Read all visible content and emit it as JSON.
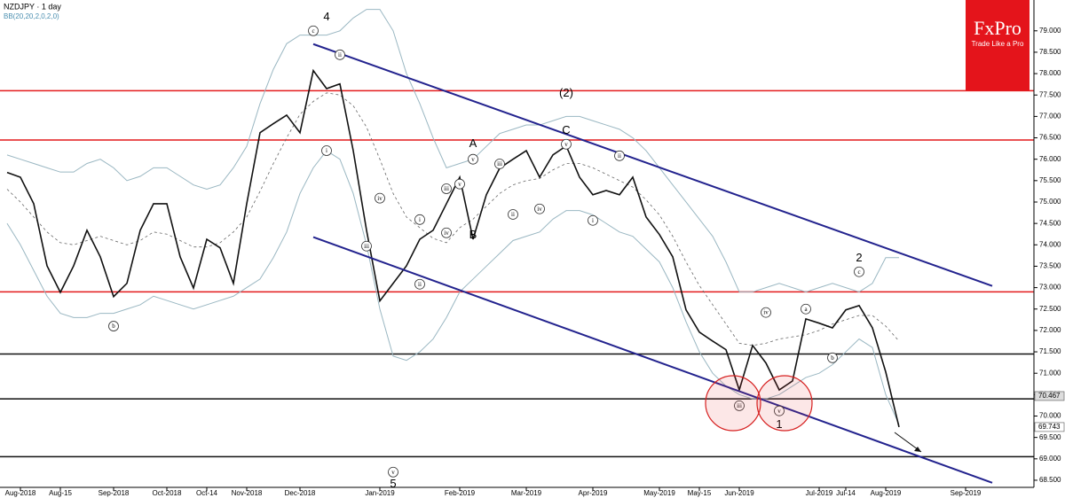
{
  "chart_data": {
    "type": "line",
    "title": "NZDJPY · 1 day",
    "subtitle": "BB(20,20,2,0,2,0)",
    "logo": {
      "brand": "FxPro",
      "tagline": "Trade Like a Pro"
    },
    "categories": [
      null,
      "Aug-2018",
      null,
      null,
      "Aug-15",
      null,
      null,
      null,
      "Sep-2018",
      null,
      null,
      null,
      "Oct-2018",
      null,
      null,
      "Oct-14",
      null,
      null,
      "Nov-2018",
      null,
      null,
      null,
      "Dec-2018",
      null,
      null,
      null,
      null,
      null,
      "Jan-2019",
      null,
      null,
      null,
      null,
      null,
      "Feb-2019",
      null,
      null,
      null,
      null,
      "Mar-2019",
      null,
      null,
      null,
      null,
      "Apr-2019",
      null,
      null,
      null,
      null,
      "May-2019",
      null,
      null,
      "May-15",
      null,
      null,
      "Jun-2019",
      null,
      null,
      null,
      null,
      null,
      "Jul-2019",
      null,
      "Jul-14",
      null,
      null,
      "Aug-2019",
      null,
      null,
      null,
      null,
      null,
      "Sep-2019",
      null,
      null,
      null,
      null,
      null
    ],
    "series": [
      {
        "color": "#111111",
        "width": 1.6,
        "values": [
          75.69,
          75.58,
          74.96,
          73.51,
          72.89,
          73.51,
          74.34,
          73.72,
          72.79,
          73.1,
          74.34,
          74.96,
          74.96,
          73.72,
          72.99,
          74.13,
          73.93,
          73.1,
          74.96,
          76.62,
          76.83,
          77.03,
          76.62,
          78.07,
          77.65,
          77.76,
          76.2,
          74.34,
          72.69,
          73.1,
          73.51,
          74.13,
          74.34,
          74.96,
          75.58,
          74.13,
          75.17,
          75.79,
          76.0,
          76.2,
          75.58,
          76.1,
          76.31,
          75.58,
          75.17,
          75.27,
          75.17,
          75.58,
          74.65,
          74.24,
          73.72,
          72.48,
          71.96,
          71.75,
          71.55,
          70.61,
          71.65,
          71.24,
          70.61,
          70.82,
          72.27,
          72.17,
          72.06,
          72.48,
          72.58,
          72.06,
          71.03,
          69.743,
          null,
          null,
          null,
          null,
          null,
          null,
          null,
          null,
          null,
          null
        ]
      },
      {
        "color": "#9ab7c2",
        "width": 1,
        "values": [
          76.1,
          76.0,
          75.9,
          75.8,
          75.7,
          75.7,
          75.9,
          76.0,
          75.8,
          75.5,
          75.6,
          75.8,
          75.8,
          75.6,
          75.4,
          75.3,
          75.4,
          75.8,
          76.3,
          77.3,
          78.1,
          78.7,
          78.9,
          78.9,
          78.9,
          79.0,
          79.3,
          79.5,
          79.5,
          79.0,
          78.0,
          77.3,
          76.5,
          75.8,
          75.9,
          76.0,
          76.3,
          76.6,
          76.7,
          76.8,
          76.8,
          76.9,
          77.0,
          77.0,
          76.9,
          76.8,
          76.7,
          76.5,
          76.2,
          75.8,
          75.4,
          75.0,
          74.6,
          74.2,
          73.6,
          72.9,
          72.9,
          73.0,
          73.1,
          73.0,
          72.9,
          73.0,
          73.1,
          73.0,
          72.9,
          73.1,
          73.7,
          73.7,
          null,
          null,
          null,
          null,
          null,
          null,
          null,
          null,
          null,
          null
        ]
      },
      {
        "color": "#666666",
        "width": 0.8,
        "dashed": true,
        "values": [
          75.3,
          75.0,
          74.65,
          74.3,
          74.05,
          74.0,
          74.1,
          74.2,
          74.1,
          74.0,
          74.1,
          74.3,
          74.25,
          74.1,
          73.95,
          73.95,
          74.05,
          74.3,
          74.65,
          75.25,
          75.9,
          76.5,
          77.05,
          77.35,
          77.55,
          77.5,
          77.25,
          76.75,
          76.0,
          75.2,
          74.65,
          74.4,
          74.15,
          74.05,
          74.4,
          74.6,
          74.9,
          75.2,
          75.4,
          75.5,
          75.55,
          75.75,
          75.9,
          75.9,
          75.8,
          75.65,
          75.5,
          75.35,
          75.05,
          74.7,
          74.2,
          73.6,
          73.05,
          72.6,
          72.15,
          71.7,
          71.65,
          71.7,
          71.8,
          71.85,
          71.9,
          72.0,
          72.15,
          72.25,
          72.35,
          72.35,
          72.1,
          71.75,
          null,
          null,
          null,
          null,
          null,
          null,
          null,
          null,
          null,
          null
        ]
      },
      {
        "color": "#9ab7c2",
        "width": 1,
        "values": [
          74.5,
          74.0,
          73.4,
          72.8,
          72.4,
          72.3,
          72.3,
          72.4,
          72.4,
          72.5,
          72.6,
          72.8,
          72.7,
          72.6,
          72.5,
          72.6,
          72.7,
          72.8,
          73.0,
          73.2,
          73.7,
          74.3,
          75.2,
          75.8,
          76.2,
          76.0,
          75.2,
          74.0,
          72.5,
          71.4,
          71.3,
          71.5,
          71.8,
          72.3,
          72.9,
          73.2,
          73.5,
          73.8,
          74.1,
          74.2,
          74.3,
          74.6,
          74.8,
          74.8,
          74.7,
          74.5,
          74.3,
          74.2,
          73.9,
          73.6,
          73.0,
          72.2,
          71.5,
          71.0,
          70.7,
          70.5,
          70.4,
          70.4,
          70.5,
          70.7,
          70.9,
          71.0,
          71.2,
          71.5,
          71.8,
          71.6,
          70.5,
          69.8,
          null,
          null,
          null,
          null,
          null,
          null,
          null,
          null,
          null,
          null
        ]
      }
    ],
    "ylim": [
      68.23,
      79.72
    ],
    "yticks": [
      {
        "value": 68.5,
        "label": "68.500"
      },
      {
        "value": 69,
        "label": "69.000"
      },
      {
        "value": 69.5,
        "label": "69.500"
      },
      {
        "value": 70,
        "label": "70.000"
      },
      {
        "value": 70.5,
        "label": "70.500"
      },
      {
        "value": 71,
        "label": "71.000"
      },
      {
        "value": 71.5,
        "label": "71.500"
      },
      {
        "value": 72,
        "label": "72.000"
      },
      {
        "value": 72.5,
        "label": "72.500"
      },
      {
        "value": 73,
        "label": "73.000"
      },
      {
        "value": 73.5,
        "label": "73.500"
      },
      {
        "value": 74,
        "label": "74.000"
      },
      {
        "value": 74.5,
        "label": "74.500"
      },
      {
        "value": 75,
        "label": "75.000"
      },
      {
        "value": 75.5,
        "label": "75.500"
      },
      {
        "value": 76,
        "label": "76.000"
      },
      {
        "value": 76.5,
        "label": "76.500"
      },
      {
        "value": 77,
        "label": "77.000"
      },
      {
        "value": 77.5,
        "label": "77.500"
      },
      {
        "value": 78,
        "label": "78.000"
      },
      {
        "value": 78.5,
        "label": "78.500"
      },
      {
        "value": 79,
        "label": "79.000"
      }
    ],
    "levels": [
      {
        "value": 77.6,
        "color": "#e31a1c"
      },
      {
        "value": 76.45,
        "color": "#e31a1c"
      },
      {
        "value": 72.9,
        "color": "#e31a1c"
      },
      {
        "value": 71.45,
        "color": "#111111"
      },
      {
        "value": 70.4,
        "color": "#111111"
      },
      {
        "value": 69.05,
        "color": "#111111"
      }
    ],
    "trend_lines": [
      {
        "from": [
          23,
          78.69
        ],
        "to": [
          74,
          73.04
        ],
        "color": "#23238e"
      },
      {
        "from": [
          23,
          74.18
        ],
        "to": [
          74,
          68.44
        ],
        "color": "#23238e"
      }
    ],
    "price_tags": [
      {
        "value": 70.467,
        "background": "#dddddd"
      },
      {
        "value": 69.743,
        "background": "#ffffff"
      }
    ],
    "wave_labels": [
      {
        "text": "4",
        "category": 24,
        "price": 79.31
      },
      {
        "text": "5",
        "category": 29,
        "price": 68.4
      },
      {
        "text": "A",
        "category": 35,
        "price": 76.35
      },
      {
        "text": "B",
        "category": 35,
        "price": 74.22
      },
      {
        "text": "(2)",
        "category": 42,
        "price": 77.53
      },
      {
        "text": "C",
        "category": 42,
        "price": 76.66
      },
      {
        "text": "1",
        "category": 58,
        "price": 69.79
      },
      {
        "text": "2",
        "category": 64,
        "price": 73.68
      }
    ],
    "circled_labels": [
      {
        "text": "b",
        "category": 8,
        "price": 72.1
      },
      {
        "text": "c",
        "category": 23,
        "price": 79.0
      },
      {
        "text": "ii",
        "category": 25,
        "price": 78.44
      },
      {
        "text": "i",
        "category": 24,
        "price": 76.2
      },
      {
        "text": "iv",
        "category": 28,
        "price": 75.09
      },
      {
        "text": "iii",
        "category": 27,
        "price": 73.97
      },
      {
        "text": "v",
        "category": 29,
        "price": 68.69
      },
      {
        "text": "i",
        "category": 31,
        "price": 74.59
      },
      {
        "text": "ii",
        "category": 31,
        "price": 73.08
      },
      {
        "text": "iii",
        "category": 33,
        "price": 75.31
      },
      {
        "text": "iv",
        "category": 33,
        "price": 74.28
      },
      {
        "text": "v",
        "category": 34,
        "price": 75.42
      },
      {
        "text": "v",
        "category": 35,
        "price": 76.0
      },
      {
        "text": "iii",
        "category": 37,
        "price": 75.89
      },
      {
        "text": "ii",
        "category": 38,
        "price": 74.71
      },
      {
        "text": "iv",
        "category": 40,
        "price": 74.84
      },
      {
        "text": "v",
        "category": 42,
        "price": 76.35
      },
      {
        "text": "i",
        "category": 44,
        "price": 74.57
      },
      {
        "text": "ii",
        "category": 46,
        "price": 76.08
      },
      {
        "text": "iii",
        "category": 55,
        "price": 70.24
      },
      {
        "text": "iv",
        "category": 57,
        "price": 72.42
      },
      {
        "text": "v",
        "category": 58,
        "price": 70.12
      },
      {
        "text": "a",
        "category": 60,
        "price": 72.5
      },
      {
        "text": "b",
        "category": 62,
        "price": 71.36
      },
      {
        "text": "c",
        "category": 64,
        "price": 73.37
      }
    ]
  }
}
